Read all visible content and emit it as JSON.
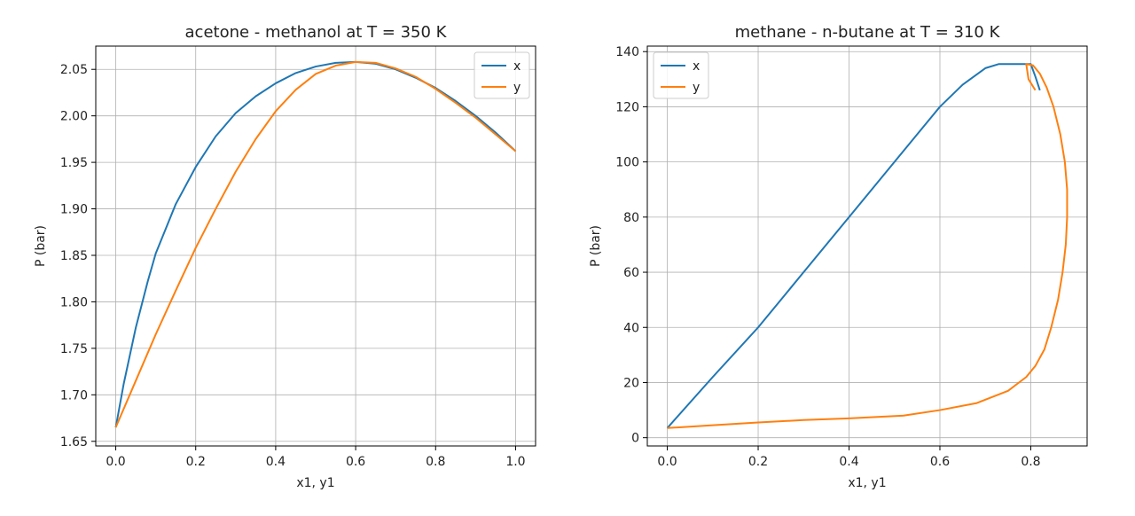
{
  "figure": {
    "panels": 2
  },
  "chart_data": [
    {
      "type": "line",
      "title": "acetone - methanol at T = 350 K",
      "xlabel": "x1, y1",
      "ylabel": "P (bar)",
      "xlim": [
        -0.05,
        1.05
      ],
      "ylim": [
        1.645,
        2.075
      ],
      "xticks": [
        0.0,
        0.2,
        0.4,
        0.6,
        0.8,
        1.0
      ],
      "xtick_labels": [
        "0.0",
        "0.2",
        "0.4",
        "0.6",
        "0.8",
        "1.0"
      ],
      "yticks": [
        1.65,
        1.7,
        1.75,
        1.8,
        1.85,
        1.9,
        1.95,
        2.0,
        2.05
      ],
      "ytick_labels": [
        "1.65",
        "1.70",
        "1.75",
        "1.80",
        "1.85",
        "1.90",
        "1.95",
        "2.00",
        "2.05"
      ],
      "grid": true,
      "legend": "top-right",
      "series": [
        {
          "name": "x",
          "color": "#1f77b4",
          "x": [
            0.0,
            0.02,
            0.05,
            0.08,
            0.1,
            0.15,
            0.2,
            0.25,
            0.3,
            0.35,
            0.4,
            0.45,
            0.5,
            0.55,
            0.6,
            0.65,
            0.7,
            0.75,
            0.8,
            0.85,
            0.9,
            0.95,
            1.0
          ],
          "y": [
            1.665,
            1.712,
            1.772,
            1.822,
            1.852,
            1.905,
            1.945,
            1.978,
            2.003,
            2.021,
            2.035,
            2.046,
            2.053,
            2.057,
            2.058,
            2.056,
            2.05,
            2.041,
            2.03,
            2.016,
            2.0,
            1.982,
            1.962
          ]
        },
        {
          "name": "y",
          "color": "#ff7f0e",
          "x": [
            0.0,
            0.05,
            0.1,
            0.15,
            0.2,
            0.25,
            0.3,
            0.35,
            0.4,
            0.45,
            0.5,
            0.55,
            0.6,
            0.65,
            0.7,
            0.75,
            0.8,
            0.85,
            0.9,
            0.95,
            1.0
          ],
          "y": [
            1.665,
            1.715,
            1.765,
            1.812,
            1.858,
            1.9,
            1.94,
            1.975,
            2.005,
            2.028,
            2.045,
            2.054,
            2.058,
            2.057,
            2.051,
            2.042,
            2.029,
            2.014,
            1.998,
            1.98,
            1.962
          ]
        }
      ]
    },
    {
      "type": "line",
      "title": "methane - n-butane at T = 310 K",
      "xlabel": "x1, y1",
      "ylabel": "P (bar)",
      "xlim": [
        -0.044,
        0.924
      ],
      "ylim": [
        -3,
        142
      ],
      "xticks": [
        0.0,
        0.2,
        0.4,
        0.6,
        0.8
      ],
      "xtick_labels": [
        "0.0",
        "0.2",
        "0.4",
        "0.6",
        "0.8"
      ],
      "yticks": [
        0,
        20,
        40,
        60,
        80,
        100,
        120,
        140
      ],
      "ytick_labels": [
        "0",
        "20",
        "40",
        "60",
        "80",
        "100",
        "120",
        "140"
      ],
      "grid": true,
      "legend": "top-left",
      "series": [
        {
          "name": "x",
          "color": "#1f77b4",
          "x": [
            0.0,
            0.1,
            0.2,
            0.3,
            0.4,
            0.5,
            0.55,
            0.6,
            0.65,
            0.7,
            0.73,
            0.8,
            0.81,
            0.82
          ],
          "y": [
            3.5,
            22,
            40,
            60,
            80,
            100,
            110,
            120,
            128,
            134,
            135.5,
            135.5,
            131,
            126
          ]
        },
        {
          "name": "y",
          "color": "#ff7f0e",
          "x": [
            0.0,
            0.1,
            0.2,
            0.3,
            0.4,
            0.52,
            0.6,
            0.68,
            0.75,
            0.79,
            0.81,
            0.83,
            0.845,
            0.86,
            0.87,
            0.877,
            0.88,
            0.88,
            0.875,
            0.865,
            0.85,
            0.835,
            0.82,
            0.805,
            0.79,
            0.795,
            0.81
          ],
          "y": [
            3.5,
            4.5,
            5.5,
            6.4,
            7.0,
            8.0,
            10.0,
            12.5,
            17,
            22,
            26,
            32,
            40,
            50,
            60,
            70,
            80,
            90,
            100,
            110,
            120,
            127,
            132,
            135,
            135.5,
            130,
            126
          ]
        }
      ]
    }
  ]
}
